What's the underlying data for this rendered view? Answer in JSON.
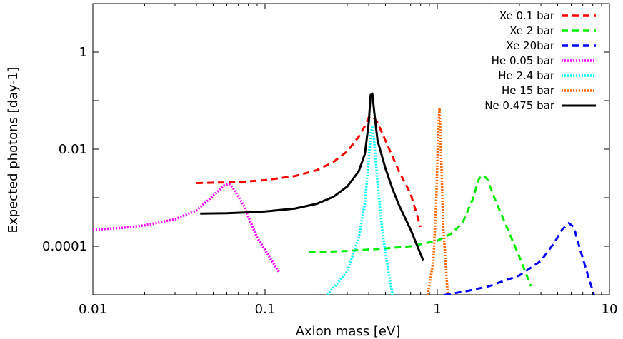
{
  "chart_data": {
    "type": "line",
    "xlabel": "Axion mass [eV]",
    "ylabel": "Expected photons [day-1]",
    "xscale": "log",
    "yscale": "log",
    "xlim": [
      0.01,
      10
    ],
    "ylim": [
      1e-05,
      10
    ],
    "xticks": [
      {
        "value": 0.01,
        "label": "0.01"
      },
      {
        "value": 0.1,
        "label": "0.1"
      },
      {
        "value": 1,
        "label": "1"
      },
      {
        "value": 10,
        "label": "10"
      }
    ],
    "yticks": [
      {
        "value": 0.0001,
        "label": "0.0001"
      },
      {
        "value": 0.01,
        "label": "0.01"
      },
      {
        "value": 1,
        "label": "1"
      }
    ],
    "legend_position": "top-right",
    "grid": false,
    "series": [
      {
        "name": "Xe 0.1 bar",
        "color": "#ff0000",
        "dash": "dashed",
        "x": [
          0.04,
          0.07,
          0.1,
          0.15,
          0.2,
          0.25,
          0.3,
          0.35,
          0.38,
          0.4,
          0.42,
          0.45,
          0.5,
          0.55,
          0.6,
          0.7,
          0.8
        ],
        "y": [
          0.002,
          0.0021,
          0.0023,
          0.0028,
          0.0037,
          0.0055,
          0.009,
          0.018,
          0.03,
          0.045,
          0.048,
          0.035,
          0.015,
          0.007,
          0.0035,
          0.0012,
          0.00025
        ]
      },
      {
        "name": "Xe 2 bar",
        "color": "#00ee00",
        "dash": "dashed",
        "x": [
          0.18,
          0.3,
          0.5,
          0.7,
          1.0,
          1.2,
          1.4,
          1.6,
          1.75,
          1.85,
          1.95,
          2.2,
          2.6,
          3.0,
          3.5
        ],
        "y": [
          7.5e-05,
          8e-05,
          9e-05,
          0.0001,
          0.00013,
          0.00018,
          0.0003,
          0.0009,
          0.0025,
          0.0029,
          0.0024,
          0.0008,
          0.0002,
          6e-05,
          1.5e-05
        ]
      },
      {
        "name": "Xe 20bar",
        "color": "#0000ff",
        "dash": "dashed",
        "x": [
          1.1,
          1.5,
          2.0,
          3.0,
          4.0,
          4.8,
          5.3,
          5.8,
          6.2,
          6.8,
          7.5,
          8.2
        ],
        "y": [
          9.9e-06,
          1.2e-05,
          1.5e-05,
          2.5e-05,
          5e-05,
          0.00012,
          0.00022,
          0.0003,
          0.00025,
          8e-05,
          2.5e-05,
          9e-06
        ]
      },
      {
        "name": "He 0.05 bar",
        "color": "#ff00ff",
        "dash": "dotted",
        "x": [
          0.01,
          0.015,
          0.02,
          0.03,
          0.04,
          0.05,
          0.058,
          0.062,
          0.066,
          0.075,
          0.09,
          0.12
        ],
        "y": [
          0.00022,
          0.00024,
          0.00027,
          0.00036,
          0.00055,
          0.0011,
          0.0018,
          0.0019,
          0.0015,
          0.0007,
          0.00015,
          3e-05
        ]
      },
      {
        "name": "He 2.4 bar",
        "color": "#00ffff",
        "dash": "dotted",
        "x": [
          0.23,
          0.3,
          0.35,
          0.38,
          0.4,
          0.41,
          0.42,
          0.43,
          0.45,
          0.48,
          0.52,
          0.55
        ],
        "y": [
          1e-05,
          3e-05,
          0.00015,
          0.0008,
          0.006,
          0.02,
          0.03,
          0.015,
          0.002,
          0.0002,
          3e-05,
          1e-05
        ]
      },
      {
        "name": "He 15 bar",
        "color": "#ff6600",
        "dash": "dotted",
        "x": [
          0.88,
          0.95,
          0.99,
          1.01,
          1.03,
          1.05,
          1.08,
          1.15
        ],
        "y": [
          1e-05,
          5e-05,
          0.0012,
          0.02,
          0.07,
          0.01,
          0.0003,
          1e-05
        ]
      },
      {
        "name": "Ne 0.475 bar",
        "color": "#000000",
        "dash": "solid",
        "x": [
          0.042,
          0.06,
          0.08,
          0.1,
          0.15,
          0.2,
          0.25,
          0.3,
          0.35,
          0.38,
          0.4,
          0.41,
          0.42,
          0.43,
          0.45,
          0.5,
          0.55,
          0.6,
          0.7,
          0.83
        ],
        "y": [
          0.00047,
          0.00048,
          0.0005,
          0.00052,
          0.0006,
          0.00075,
          0.00105,
          0.0017,
          0.0035,
          0.008,
          0.035,
          0.13,
          0.14,
          0.06,
          0.015,
          0.004,
          0.0015,
          0.0007,
          0.00022,
          5e-05
        ]
      }
    ]
  }
}
